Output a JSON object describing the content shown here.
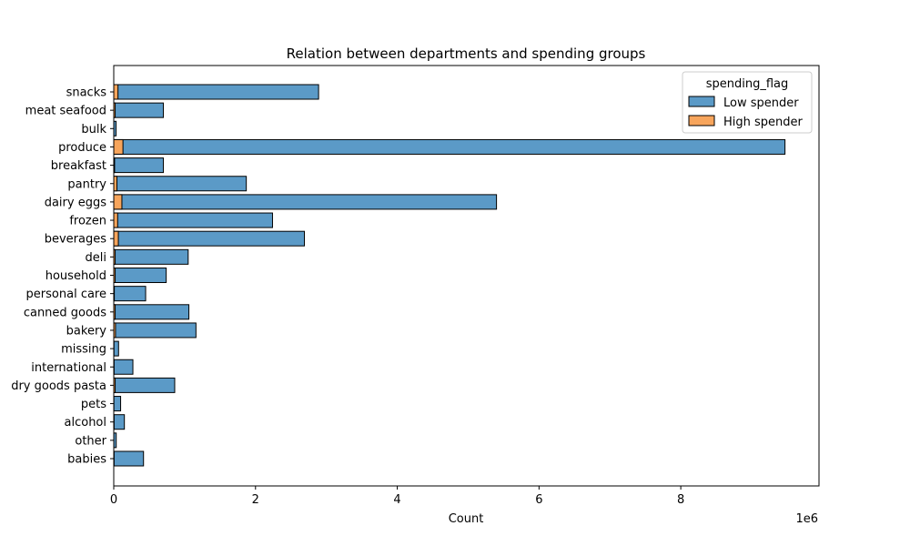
{
  "chart_data": {
    "type": "bar",
    "orientation": "horizontal",
    "stacked": true,
    "title": "Relation between departments and spending groups",
    "xlabel": "Count",
    "ylabel": "",
    "x_scale_label": "1e6",
    "xlim": [
      0,
      9950000
    ],
    "x_ticks": [
      0,
      2000000,
      4000000,
      6000000,
      8000000
    ],
    "x_tick_labels": [
      "0",
      "2",
      "4",
      "6",
      "8"
    ],
    "grid": false,
    "legend": {
      "title": "spending_flag",
      "placement": "top-right"
    },
    "categories": [
      "snacks",
      "meat seafood",
      "bulk",
      "produce",
      "breakfast",
      "pantry",
      "dairy eggs",
      "frozen",
      "beverages",
      "deli",
      "household",
      "personal care",
      "canned goods",
      "bakery",
      "missing",
      "international",
      "dry goods pasta",
      "pets",
      "alcohol",
      "other",
      "babies"
    ],
    "series": [
      {
        "name": "Low spender",
        "color": "#5b9ac7",
        "values": [
          2890000,
          700000,
          33000,
          9470000,
          700000,
          1870000,
          5400000,
          2240000,
          2690000,
          1050000,
          740000,
          450000,
          1060000,
          1160000,
          68000,
          270000,
          860000,
          97000,
          150000,
          35000,
          420000
        ]
      },
      {
        "name": "High spender",
        "color": "#f7a55c",
        "values": [
          60000,
          20000,
          1000,
          130000,
          12000,
          45000,
          115000,
          55000,
          65000,
          20000,
          20000,
          8000,
          20000,
          25000,
          3000,
          5000,
          20000,
          2000,
          5000,
          1000,
          5000
        ]
      }
    ]
  }
}
